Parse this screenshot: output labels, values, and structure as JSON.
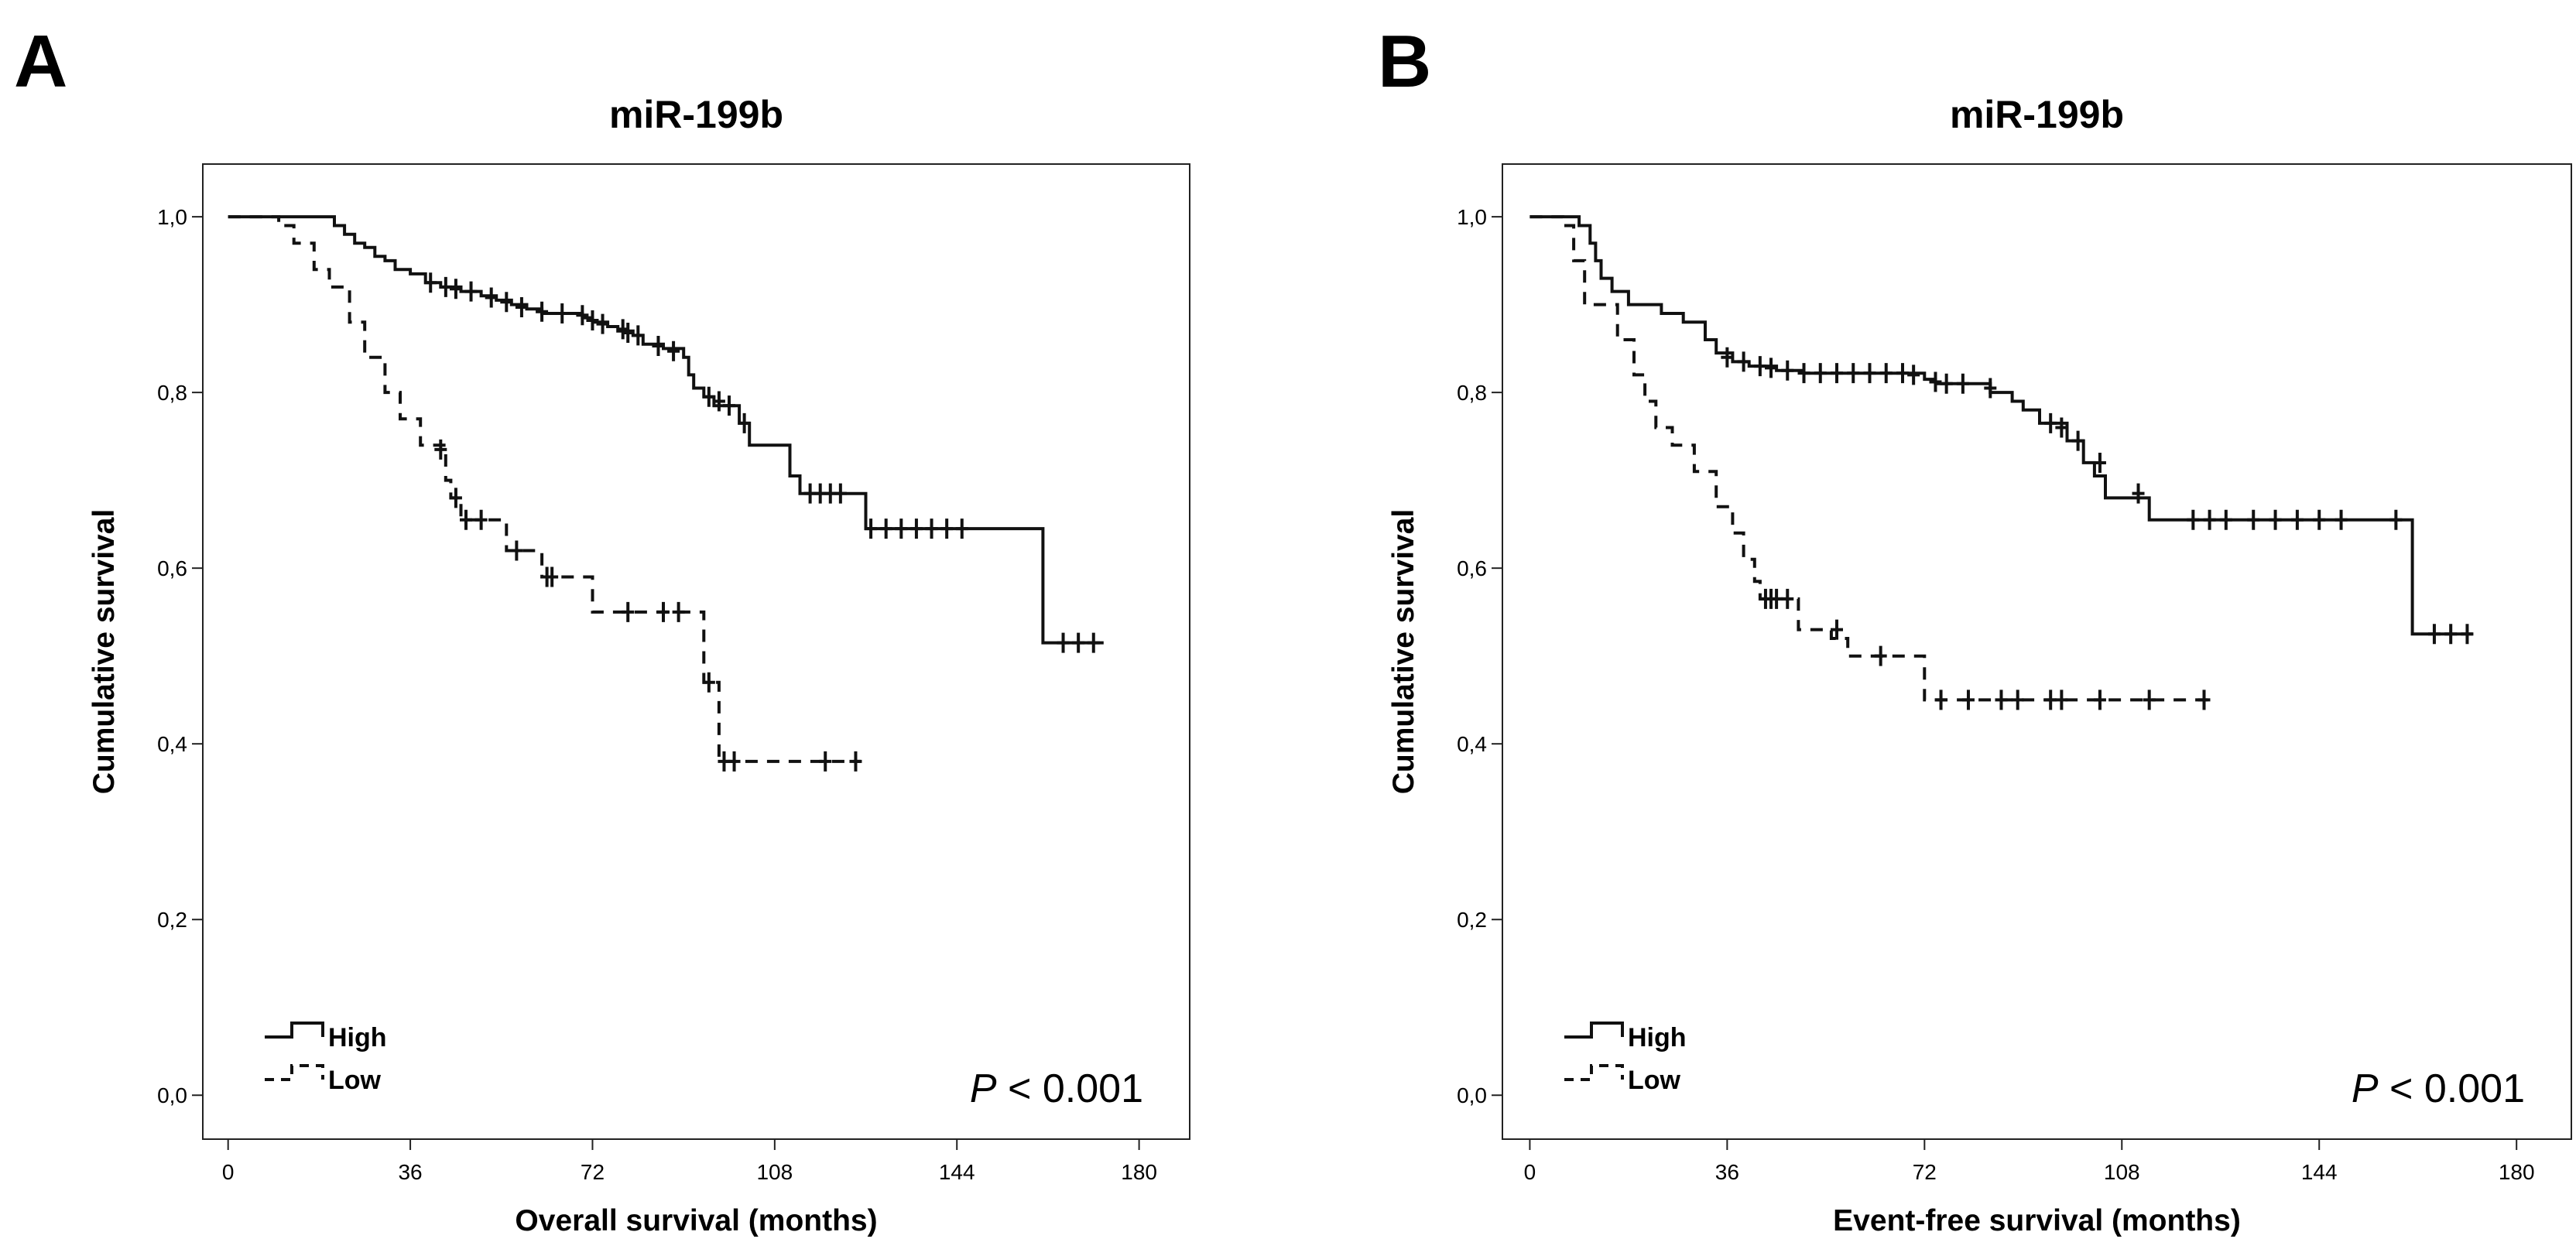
{
  "chart_data": [
    {
      "panel_label": "A",
      "type": "line",
      "subtype": "kaplan-meier",
      "title": "miR-199b",
      "xlabel": "Overall survival (months)",
      "ylabel": "Cumulative survival",
      "xlim": [
        -5,
        190
      ],
      "ylim": [
        -0.05,
        1.06
      ],
      "xticks": [
        0,
        36,
        72,
        108,
        144,
        180
      ],
      "yticks": [
        0.0,
        0.2,
        0.4,
        0.6,
        0.8,
        1.0
      ],
      "xtick_labels": [
        "0",
        "36",
        "72",
        "108",
        "144",
        "180"
      ],
      "ytick_labels": [
        "0,0",
        "0,2",
        "0,4",
        "0,6",
        "0,8",
        "1,0"
      ],
      "legend_position": "bottom-left",
      "annotation": {
        "p_symbol": "P",
        "p_text": " < 0.001"
      },
      "series": [
        {
          "name": "High",
          "style": "solid",
          "steps": [
            [
              0,
              1.0
            ],
            [
              21,
              0.99
            ],
            [
              23,
              0.98
            ],
            [
              25,
              0.97
            ],
            [
              27,
              0.965
            ],
            [
              29,
              0.955
            ],
            [
              31,
              0.95
            ],
            [
              33,
              0.94
            ],
            [
              36,
              0.935
            ],
            [
              39,
              0.925
            ],
            [
              42,
              0.92
            ],
            [
              46,
              0.915
            ],
            [
              50,
              0.91
            ],
            [
              53,
              0.905
            ],
            [
              56,
              0.9
            ],
            [
              59,
              0.895
            ],
            [
              62,
              0.89
            ],
            [
              70,
              0.885
            ],
            [
              72,
              0.88
            ],
            [
              75,
              0.875
            ],
            [
              77,
              0.87
            ],
            [
              80,
              0.865
            ],
            [
              82,
              0.855
            ],
            [
              86,
              0.85
            ],
            [
              90,
              0.84
            ],
            [
              91,
              0.82
            ],
            [
              92,
              0.805
            ],
            [
              94,
              0.795
            ],
            [
              96,
              0.785
            ],
            [
              101,
              0.765
            ],
            [
              103,
              0.74
            ],
            [
              111,
              0.705
            ],
            [
              113,
              0.685
            ],
            [
              126,
              0.645
            ],
            [
              161,
              0.515
            ],
            [
              173,
              0.515
            ]
          ],
          "censored": [
            [
              40,
              0.925
            ],
            [
              43,
              0.92
            ],
            [
              45,
              0.918
            ],
            [
              48,
              0.915
            ],
            [
              52,
              0.908
            ],
            [
              55,
              0.903
            ],
            [
              58,
              0.897
            ],
            [
              62,
              0.892
            ],
            [
              66,
              0.89
            ],
            [
              70,
              0.888
            ],
            [
              72,
              0.882
            ],
            [
              74,
              0.878
            ],
            [
              78,
              0.872
            ],
            [
              79,
              0.868
            ],
            [
              81,
              0.865
            ],
            [
              85,
              0.853
            ],
            [
              88,
              0.847
            ],
            [
              95,
              0.795
            ],
            [
              97,
              0.79
            ],
            [
              99,
              0.785
            ],
            [
              102,
              0.765
            ],
            [
              115,
              0.685
            ],
            [
              117,
              0.685
            ],
            [
              119,
              0.685
            ],
            [
              121,
              0.685
            ],
            [
              127,
              0.645
            ],
            [
              130,
              0.645
            ],
            [
              133,
              0.645
            ],
            [
              136,
              0.645
            ],
            [
              139,
              0.645
            ],
            [
              142,
              0.645
            ],
            [
              145,
              0.645
            ],
            [
              165,
              0.515
            ],
            [
              168,
              0.515
            ],
            [
              171,
              0.515
            ]
          ]
        },
        {
          "name": "Low",
          "style": "dashed",
          "steps": [
            [
              0,
              1.0
            ],
            [
              10,
              0.99
            ],
            [
              13,
              0.97
            ],
            [
              17,
              0.94
            ],
            [
              20,
              0.92
            ],
            [
              24,
              0.88
            ],
            [
              27,
              0.84
            ],
            [
              31,
              0.8
            ],
            [
              34,
              0.77
            ],
            [
              38,
              0.74
            ],
            [
              43,
              0.7
            ],
            [
              44,
              0.68
            ],
            [
              46,
              0.655
            ],
            [
              55,
              0.62
            ],
            [
              62,
              0.59
            ],
            [
              72,
              0.55
            ],
            [
              94,
              0.47
            ],
            [
              97,
              0.38
            ],
            [
              125,
              0.38
            ]
          ],
          "censored": [
            [
              42,
              0.735
            ],
            [
              45,
              0.68
            ],
            [
              47,
              0.655
            ],
            [
              50,
              0.655
            ],
            [
              57,
              0.62
            ],
            [
              63,
              0.59
            ],
            [
              64,
              0.59
            ],
            [
              79,
              0.55
            ],
            [
              86,
              0.55
            ],
            [
              89,
              0.55
            ],
            [
              95,
              0.47
            ],
            [
              98,
              0.38
            ],
            [
              100,
              0.38
            ],
            [
              118,
              0.38
            ],
            [
              124,
              0.38
            ]
          ]
        }
      ]
    },
    {
      "panel_label": "B",
      "type": "line",
      "subtype": "kaplan-meier",
      "title": "miR-199b",
      "xlabel": "Event-free survival (months)",
      "ylabel": "Cumulative survival",
      "xlim": [
        -5,
        190
      ],
      "ylim": [
        -0.05,
        1.06
      ],
      "xticks": [
        0,
        36,
        72,
        108,
        144,
        180
      ],
      "yticks": [
        0.0,
        0.2,
        0.4,
        0.6,
        0.8,
        1.0
      ],
      "xtick_labels": [
        "0",
        "36",
        "72",
        "108",
        "144",
        "180"
      ],
      "ytick_labels": [
        "0,0",
        "0,2",
        "0,4",
        "0,6",
        "0,8",
        "1,0"
      ],
      "legend_position": "bottom-left",
      "annotation": {
        "p_symbol": "P",
        "p_text": " < 0.001"
      },
      "series": [
        {
          "name": "High",
          "style": "solid",
          "steps": [
            [
              0,
              1.0
            ],
            [
              9,
              0.99
            ],
            [
              11,
              0.97
            ],
            [
              12,
              0.95
            ],
            [
              13,
              0.93
            ],
            [
              15,
              0.915
            ],
            [
              18,
              0.9
            ],
            [
              24,
              0.89
            ],
            [
              28,
              0.88
            ],
            [
              32,
              0.86
            ],
            [
              34,
              0.845
            ],
            [
              37,
              0.835
            ],
            [
              40,
              0.83
            ],
            [
              45,
              0.825
            ],
            [
              50,
              0.822
            ],
            [
              72,
              0.815
            ],
            [
              74,
              0.81
            ],
            [
              84,
              0.8
            ],
            [
              88,
              0.79
            ],
            [
              90,
              0.78
            ],
            [
              93,
              0.765
            ],
            [
              98,
              0.745
            ],
            [
              101,
              0.72
            ],
            [
              103,
              0.705
            ],
            [
              105,
              0.68
            ],
            [
              113,
              0.655
            ],
            [
              161,
              0.525
            ],
            [
              172,
              0.525
            ]
          ],
          "censored": [
            [
              36,
              0.84
            ],
            [
              39,
              0.835
            ],
            [
              42,
              0.83
            ],
            [
              44,
              0.828
            ],
            [
              47,
              0.825
            ],
            [
              50,
              0.822
            ],
            [
              53,
              0.822
            ],
            [
              56,
              0.822
            ],
            [
              59,
              0.822
            ],
            [
              62,
              0.822
            ],
            [
              65,
              0.822
            ],
            [
              68,
              0.822
            ],
            [
              70,
              0.82
            ],
            [
              74,
              0.812
            ],
            [
              76,
              0.81
            ],
            [
              79,
              0.81
            ],
            [
              84,
              0.805
            ],
            [
              95,
              0.765
            ],
            [
              97,
              0.76
            ],
            [
              100,
              0.745
            ],
            [
              104,
              0.72
            ],
            [
              111,
              0.685
            ],
            [
              121,
              0.655
            ],
            [
              124,
              0.655
            ],
            [
              127,
              0.655
            ],
            [
              132,
              0.655
            ],
            [
              136,
              0.655
            ],
            [
              140,
              0.655
            ],
            [
              144,
              0.655
            ],
            [
              148,
              0.655
            ],
            [
              158,
              0.655
            ],
            [
              165,
              0.525
            ],
            [
              168,
              0.525
            ],
            [
              171,
              0.525
            ]
          ]
        },
        {
          "name": "Low",
          "style": "dashed",
          "steps": [
            [
              0,
              1.0
            ],
            [
              6,
              0.99
            ],
            [
              8,
              0.95
            ],
            [
              10,
              0.9
            ],
            [
              16,
              0.86
            ],
            [
              19,
              0.82
            ],
            [
              21,
              0.79
            ],
            [
              23,
              0.76
            ],
            [
              26,
              0.74
            ],
            [
              30,
              0.71
            ],
            [
              34,
              0.67
            ],
            [
              37,
              0.64
            ],
            [
              39,
              0.61
            ],
            [
              41,
              0.585
            ],
            [
              42,
              0.565
            ],
            [
              49,
              0.53
            ],
            [
              55,
              0.52
            ],
            [
              58,
              0.5
            ],
            [
              72,
              0.45
            ],
            [
              125,
              0.45
            ]
          ],
          "censored": [
            [
              43,
              0.565
            ],
            [
              44,
              0.565
            ],
            [
              45,
              0.565
            ],
            [
              47,
              0.565
            ],
            [
              56,
              0.53
            ],
            [
              64,
              0.5
            ],
            [
              75,
              0.45
            ],
            [
              80,
              0.45
            ],
            [
              86,
              0.45
            ],
            [
              89,
              0.45
            ],
            [
              95,
              0.45
            ],
            [
              97,
              0.45
            ],
            [
              104,
              0.45
            ],
            [
              113,
              0.45
            ],
            [
              123,
              0.45
            ]
          ]
        }
      ]
    }
  ]
}
